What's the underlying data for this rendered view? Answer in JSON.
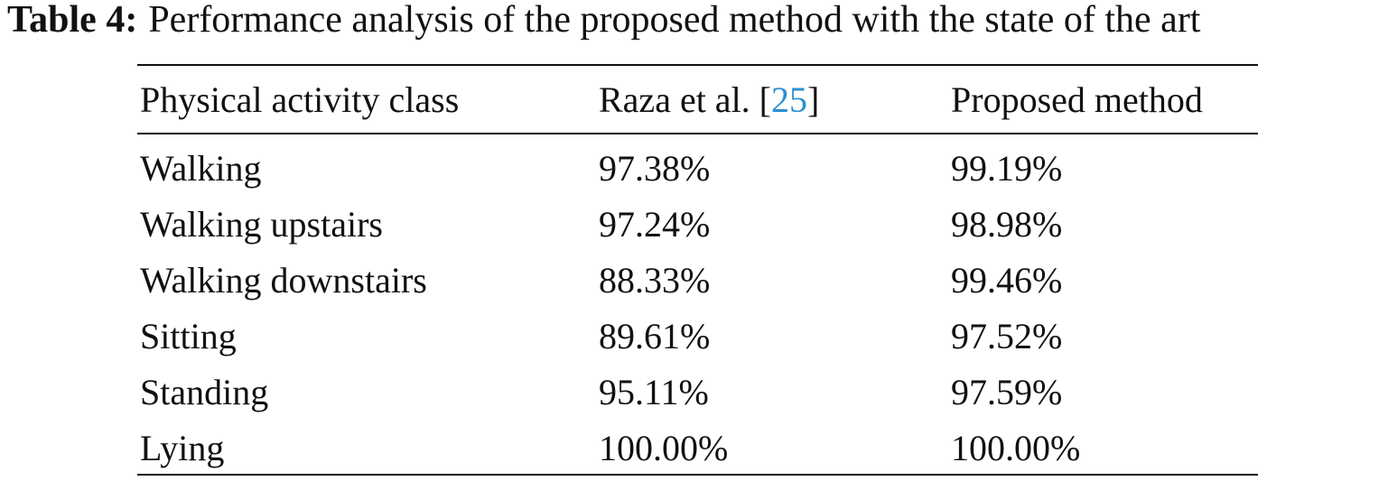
{
  "caption": {
    "label": "Table 4:",
    "text": "Performance analysis of the proposed method with the state of the art"
  },
  "table": {
    "header": [
      "Physical activity class",
      [
        "Raza et al. [",
        "25",
        "]"
      ],
      "Proposed method"
    ],
    "rows": [
      [
        "Walking",
        "97.38%",
        "99.19%"
      ],
      [
        "Walking upstairs",
        "97.24%",
        "98.98%"
      ],
      [
        "Walking downstairs",
        "88.33%",
        "99.46%"
      ],
      [
        "Sitting",
        "89.61%",
        "97.52%"
      ],
      [
        "Standing",
        "95.11%",
        "97.59%"
      ],
      [
        "Lying",
        "100.00%",
        "100.00%"
      ]
    ]
  }
}
